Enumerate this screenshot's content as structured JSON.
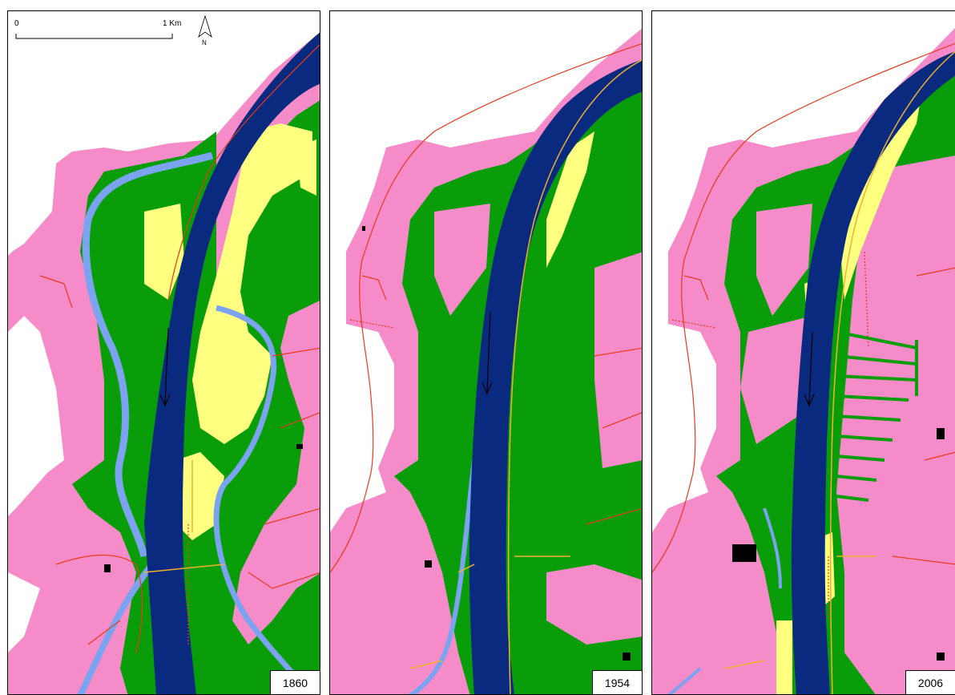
{
  "scale_bar": {
    "start_label": "0",
    "end_label": "1 Km"
  },
  "north_arrow": {
    "label": "N",
    "icon": "north-arrow-icon"
  },
  "panels": [
    {
      "year": "1860"
    },
    {
      "year": "1954"
    },
    {
      "year": "2006"
    }
  ],
  "colors": {
    "river": "#0a2a7f",
    "forest": "#0a9d0a",
    "agriculture": "#f58bc8",
    "gravel_bar": "#ffff80",
    "side_channel": "#7ba3f0",
    "roads": "#e83a1e",
    "dykes": "#f0b030"
  }
}
